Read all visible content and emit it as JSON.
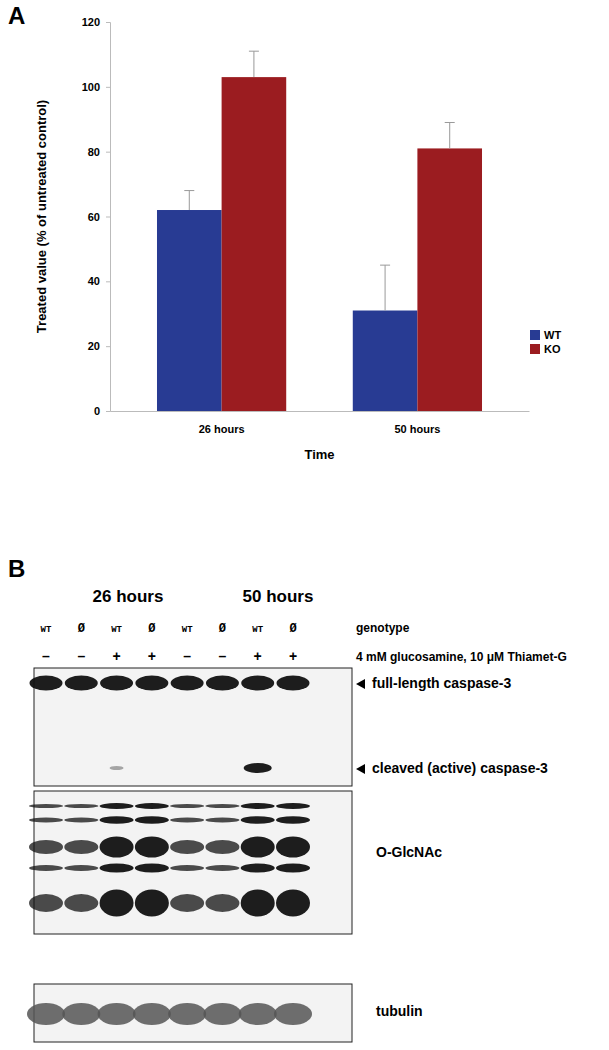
{
  "chart_data": {
    "type": "bar",
    "categories": [
      "26 hours",
      "50 hours"
    ],
    "series": [
      {
        "name": "WT",
        "color": "#283b93",
        "values": [
          62,
          31
        ],
        "errors": [
          6,
          14
        ]
      },
      {
        "name": "KO",
        "color": "#9b1c20",
        "values": [
          103,
          81
        ],
        "errors": [
          8,
          8
        ]
      }
    ],
    "xlabel": "Time",
    "ylabel": "Treated value (% of untreated control)",
    "ylim": [
      0,
      120
    ],
    "yticks": [
      0,
      20,
      40,
      60,
      80,
      100,
      120
    ],
    "grid": false,
    "legend": "right"
  },
  "panel_labels": [
    "A",
    "B"
  ],
  "blot": {
    "time_points": [
      "26 hours",
      "50 hours"
    ],
    "genotypes": [
      "WT",
      "Ø",
      "WT",
      "Ø",
      "WT",
      "Ø",
      "WT",
      "Ø"
    ],
    "genotype_label": "genotype",
    "treatments": [
      "–",
      "–",
      "+",
      "+",
      "–",
      "–",
      "+",
      "+"
    ],
    "treatment_label": "4 mM glucosamine, 10 μM Thiamet-G",
    "rows": [
      {
        "label": "full-length caspase-3"
      },
      {
        "label": "cleaved (active) caspase-3"
      },
      {
        "label": "O-GlcNAc"
      },
      {
        "label": "tubulin"
      }
    ]
  }
}
